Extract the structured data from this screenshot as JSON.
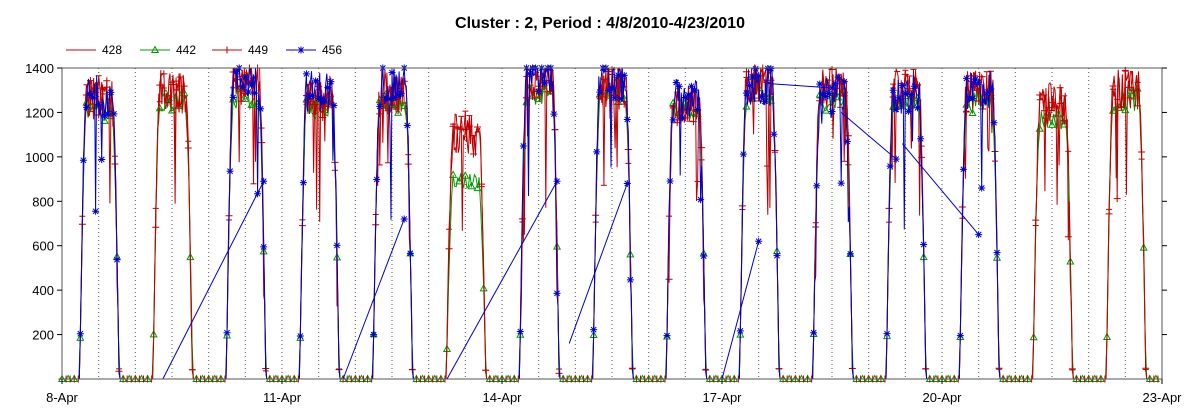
{
  "chart_data": {
    "type": "line",
    "title": "Cluster : 2, Period : 4/8/2010-4/23/2010",
    "xlabel": "",
    "ylabel": "",
    "x_range": [
      "2010-04-08",
      "2010-04-23"
    ],
    "x_ticks": [
      "8-Apr",
      "11-Apr",
      "14-Apr",
      "17-Apr",
      "20-Apr",
      "23-Apr"
    ],
    "ylim": [
      0,
      1400
    ],
    "y_ticks": [
      "200",
      "400",
      "600",
      "800",
      "1000",
      "1200",
      "1400"
    ],
    "grid": "vertical dotted lines at midnight and noon",
    "legend_position": "top-left",
    "series": [
      {
        "name": "428",
        "color": "#c00000",
        "marker": "dash"
      },
      {
        "name": "442",
        "color": "#009900",
        "marker": "triangle"
      },
      {
        "name": "449",
        "color": "#c00000",
        "marker": "plus"
      },
      {
        "name": "456",
        "color": "#0000cc",
        "marker": "asterisk"
      }
    ],
    "daily_profile": {
      "x": [
        "2010-04-08",
        "2010-04-09",
        "2010-04-10",
        "2010-04-11",
        "2010-04-12",
        "2010-04-13",
        "2010-04-14",
        "2010-04-15",
        "2010-04-16",
        "2010-04-17",
        "2010-04-18",
        "2010-04-19",
        "2010-04-20",
        "2010-04-21",
        "2010-04-22"
      ],
      "daytime_peak_428": [
        1300,
        1320,
        1380,
        1300,
        1320,
        1150,
        1380,
        1340,
        1270,
        1370,
        1340,
        1330,
        1330,
        1270,
        1330
      ],
      "daytime_peak_442": [
        1220,
        1270,
        1280,
        1230,
        1250,
        900,
        1300,
        1280,
        1230,
        1290,
        1270,
        1260,
        1260,
        1180,
        1270
      ],
      "daytime_peak_449": [
        1280,
        1310,
        1370,
        1290,
        1310,
        1100,
        1360,
        1330,
        1260,
        1360,
        1330,
        1320,
        1320,
        1250,
        1320
      ],
      "daytime_peak_456": [
        1300,
        null,
        1380,
        1320,
        1350,
        null,
        1390,
        1370,
        1280,
        1330,
        1290,
        1300,
        1330,
        null,
        null
      ]
    },
    "series_456_gap_bridges": [
      {
        "from": "2010-04-09 09:00",
        "from_value": 0,
        "to": "2010-04-10 18:00",
        "to_value": 890
      },
      {
        "from": "2010-04-11 20:00",
        "from_value": 0,
        "to": "2010-04-12 16:00",
        "to_value": 720
      },
      {
        "from": "2010-04-13 06:00",
        "from_value": 0,
        "to": "2010-04-14 18:00",
        "to_value": 890
      },
      {
        "from": "2010-04-14 22:00",
        "from_value": 160,
        "to": "2010-04-15 17:00",
        "to_value": 880
      },
      {
        "from": "2010-04-17 00:00",
        "from_value": 0,
        "to": "2010-04-17 12:00",
        "to_value": 620
      },
      {
        "from": "2010-04-17 15:00",
        "from_value": 1330,
        "to": "2010-04-18 12:00",
        "to_value": 1310
      },
      {
        "from": "2010-04-18 15:00",
        "from_value": 1200,
        "to": "2010-04-19 09:00",
        "to_value": 990
      },
      {
        "from": "2010-04-19 11:00",
        "from_value": 1060,
        "to": "2010-04-20 12:00",
        "to_value": 650
      }
    ]
  }
}
